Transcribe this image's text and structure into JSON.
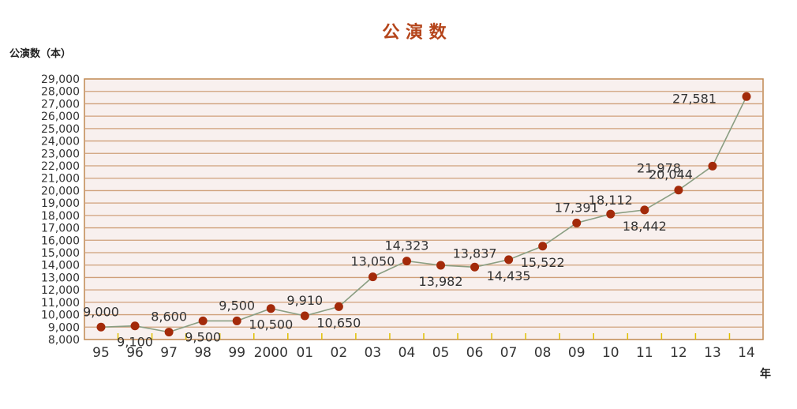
{
  "chart_data": {
    "type": "line",
    "title": "公 演 数",
    "ylabel": "公演数（本）",
    "xlabel": "年",
    "categories": [
      "95",
      "96",
      "97",
      "98",
      "99",
      "2000",
      "01",
      "02",
      "03",
      "04",
      "05",
      "06",
      "07",
      "08",
      "09",
      "10",
      "11",
      "12",
      "13",
      "14"
    ],
    "series": [
      {
        "values": [
          9000,
          9100,
          8600,
          9500,
          9500,
          10500,
          9910,
          10650,
          13050,
          14323,
          13982,
          13837,
          14435,
          15522,
          17391,
          18112,
          18442,
          20044,
          21978,
          27581
        ]
      }
    ],
    "point_labels": [
      "9,000",
      "9,100",
      "8,600",
      "9,500",
      "9,500",
      "10,500",
      "9,910",
      "10,650",
      "13,050",
      "14,323",
      "13,982",
      "13,837",
      "14,435",
      "15,522",
      "17,391",
      "18,112",
      "18,442",
      "20,044",
      "21,978",
      "27,581"
    ],
    "ylim": [
      8000,
      29000
    ],
    "yticks": [
      8000,
      9000,
      10000,
      11000,
      12000,
      13000,
      14000,
      15000,
      16000,
      17000,
      18000,
      19000,
      20000,
      21000,
      22000,
      23000,
      24000,
      25000,
      26000,
      27000,
      28000,
      29000
    ],
    "ytick_labels": [
      "8,000",
      "9,000",
      "10,000",
      "11,000",
      "12,000",
      "13,000",
      "14,000",
      "15,000",
      "16,000",
      "17,000",
      "18,000",
      "19,000",
      "20,000",
      "21,000",
      "22,000",
      "23,000",
      "24,000",
      "25,000",
      "26,000",
      "27,000",
      "28,000",
      "29,000"
    ],
    "grid": true,
    "legend": "none"
  },
  "colors": {
    "title": "#b5451b",
    "plot_bg": "#f8f0ee",
    "plot_border": "#c08850",
    "gridline": "#cfa07a",
    "line": "#8a9e82",
    "marker": "#a32a0a",
    "tick_marks": "#e0c000",
    "text": "#333333"
  }
}
